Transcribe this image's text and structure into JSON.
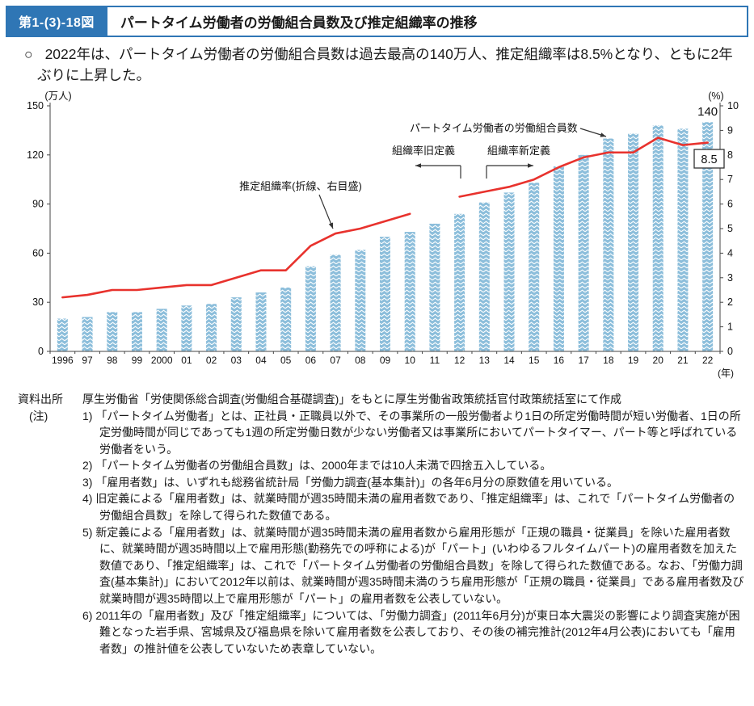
{
  "header": {
    "figure_number": "第1-(3)-18図",
    "title": "パートタイム労働者の労働組合員数及び推定組織率の推移"
  },
  "lead": {
    "bullet": "○",
    "text": "2022年は、パートタイム労働者の労働組合員数は過去最高の140万人、推定組織率は8.5%となり、ともに2年ぶりに上昇した。"
  },
  "chart_data": {
    "type": "bar",
    "title": "パートタイム労働者の労働組合員数及び推定組織率の推移",
    "categories": [
      "1996",
      "97",
      "98",
      "99",
      "2000",
      "01",
      "02",
      "03",
      "04",
      "05",
      "06",
      "07",
      "08",
      "09",
      "10",
      "11",
      "12",
      "13",
      "14",
      "15",
      "16",
      "17",
      "18",
      "19",
      "20",
      "21",
      "22"
    ],
    "x_unit": "(年)",
    "left_axis": {
      "unit": "(万人)",
      "min": 0,
      "max": 150,
      "ticks": [
        0,
        30,
        60,
        90,
        120,
        150
      ]
    },
    "right_axis": {
      "unit": "(%)",
      "min": 0,
      "max": 10,
      "ticks": [
        0,
        1,
        2,
        3,
        4,
        5,
        6,
        7,
        8,
        9,
        10
      ]
    },
    "bars": {
      "name": "パートタイム労働者の労働組合員数",
      "color": "#8cbedb",
      "values": [
        20,
        21,
        24,
        24,
        26,
        28,
        29,
        33,
        36,
        39,
        52,
        59,
        62,
        70,
        73,
        78,
        84,
        91,
        97,
        103,
        113,
        120,
        130,
        133,
        138,
        136,
        140
      ]
    },
    "line": {
      "name": "推定組織率(折線、右目盛)",
      "color": "#e8322d",
      "values": [
        2.2,
        2.3,
        2.5,
        2.5,
        2.6,
        2.7,
        2.7,
        3.0,
        3.3,
        3.3,
        4.3,
        4.8,
        5.0,
        5.3,
        5.6,
        null,
        6.3,
        6.5,
        6.7,
        7.0,
        7.5,
        7.9,
        8.1,
        8.1,
        8.7,
        8.4,
        8.5
      ]
    },
    "annotations": {
      "bar_series": "パートタイム労働者の労働組合員数",
      "line_series": "推定組織率(折線、右目盛)",
      "old_definition": "組織率旧定義",
      "new_definition": "組織率新定義",
      "last_bar_value": "140",
      "last_rate_value": "8.5"
    }
  },
  "notes": {
    "source_label": "資料出所",
    "source_text": "厚生労働省「労使関係総合調査(労働組合基礎調査)」をもとに厚生労働省政策統括官付政策統括室にて作成",
    "note_label": "(注)",
    "items": [
      {
        "num": "1)",
        "text": "「パートタイム労働者」とは、正社員・正職員以外で、その事業所の一般労働者より1日の所定労働時間が短い労働者、1日の所定労働時間が同じであっても1週の所定労働日数が少ない労働者又は事業所においてパートタイマー、パート等と呼ばれている労働者をいう。"
      },
      {
        "num": "2)",
        "text": "「パートタイム労働者の労働組合員数」は、2000年までは10人未満で四捨五入している。"
      },
      {
        "num": "3)",
        "text": "「雇用者数」は、いずれも総務省統計局「労働力調査(基本集計)」の各年6月分の原数値を用いている。"
      },
      {
        "num": "4)",
        "text": "旧定義による「雇用者数」は、就業時間が週35時間未満の雇用者数であり、「推定組織率」は、これで「パートタイム労働者の労働組合員数」を除して得られた数値である。"
      },
      {
        "num": "5)",
        "text": "新定義による「雇用者数」は、就業時間が週35時間未満の雇用者数から雇用形態が「正規の職員・従業員」を除いた雇用者数に、就業時間が週35時間以上で雇用形態(勤務先での呼称による)が「パート」(いわゆるフルタイムパート)の雇用者数を加えた数値であり、「推定組織率」は、これで「パートタイム労働者の労働組合員数」を除して得られた数値である。なお、「労働力調査(基本集計)」において2012年以前は、就業時間が週35時間未満のうち雇用形態が「正規の職員・従業員」である雇用者数及び就業時間が週35時間以上で雇用形態が「パート」の雇用者数を公表していない。"
      },
      {
        "num": "6)",
        "text": "2011年の「雇用者数」及び「推定組織率」については、「労働力調査」(2011年6月分)が東日本大震災の影響により調査実施が困難となった岩手県、宮城県及び福島県を除いて雇用者数を公表しており、その後の補完推計(2012年4月公表)においても「雇用者数」の推計値を公表していないため表章していない。"
      }
    ]
  }
}
